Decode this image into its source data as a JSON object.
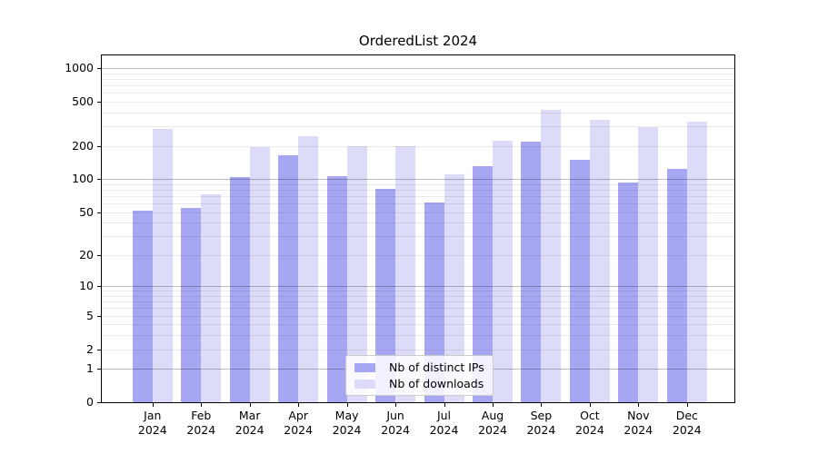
{
  "chart_data": {
    "type": "bar",
    "title": "OrderedList 2024",
    "categories": [
      "Jan 2024",
      "Feb 2024",
      "Mar 2024",
      "Apr 2024",
      "May 2024",
      "Jun 2024",
      "Jul 2024",
      "Aug 2024",
      "Sep 2024",
      "Oct 2024",
      "Nov 2024",
      "Dec 2024"
    ],
    "series": [
      {
        "name": "Nb of distinct IPs",
        "color": "#a6a6f3",
        "values": [
          52,
          55,
          104,
          163,
          107,
          81,
          61,
          131,
          218,
          149,
          93,
          123
        ]
      },
      {
        "name": "Nb of downloads",
        "color": "#dcdcf8",
        "values": [
          285,
          73,
          193,
          243,
          198,
          199,
          110,
          223,
          418,
          341,
          292,
          331
        ]
      }
    ],
    "y_ticks": [
      0,
      1,
      2,
      5,
      10,
      20,
      50,
      100,
      200,
      500,
      1000
    ],
    "y_scale": "log10(1+v)",
    "ylim": [
      0,
      1300
    ],
    "grid": "both",
    "legend_position": "lower center"
  }
}
